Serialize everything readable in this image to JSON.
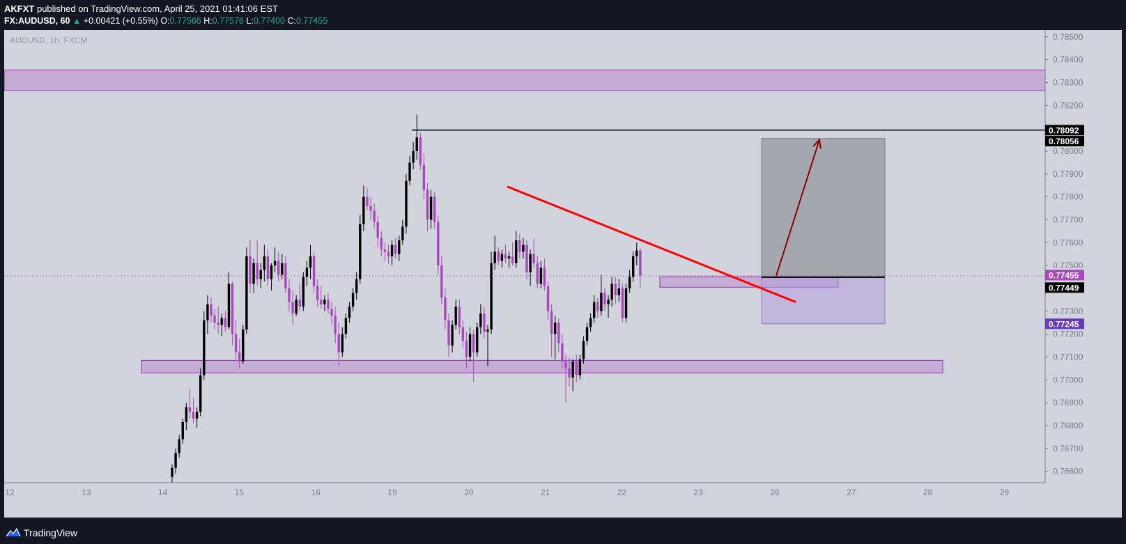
{
  "header": {
    "author": "AKFXT",
    "published_text": "published on TradingView.com, April 25, 2021 01:41:06 EST",
    "symbol": "FX:AUDUSD, 60",
    "change": "+0.00421 (+0.55%)",
    "open_label": "O:",
    "open": "0.77566",
    "high_label": "H:",
    "high": "0.77576",
    "low_label": "L:",
    "low": "0.77400",
    "close_label": "C:",
    "close": "0.77455"
  },
  "footer": {
    "brand": "TradingView"
  },
  "chart_data": {
    "type": "candlestick",
    "title": "AUDUSD, 1h, FXCM",
    "ylim": [
      0.7655,
      0.7853
    ],
    "price_ticks": [
      "0.78500",
      "0.78400",
      "0.78300",
      "0.78200",
      "0.78100",
      "0.78000",
      "0.77900",
      "0.77800",
      "0.77700",
      "0.77600",
      "0.77500",
      "0.77300",
      "0.77200",
      "0.77100",
      "0.77000",
      "0.76900",
      "0.76800",
      "0.76700",
      "0.76600"
    ],
    "time_ticks": [
      "12",
      "13",
      "14",
      "15",
      "16",
      "19",
      "20",
      "21",
      "22",
      "23",
      "26",
      "27",
      "28",
      "29"
    ],
    "price_badges": [
      {
        "value": "0.78092",
        "bg": "#000000"
      },
      {
        "value": "0.78056",
        "bg": "#000000"
      },
      {
        "value": "0.77455",
        "bg": "#ab47bc"
      },
      {
        "value": "0.77449",
        "bg": "#000000"
      },
      {
        "value": "0.77245",
        "bg": "#673ab7"
      }
    ],
    "zones": [
      {
        "name": "upper-resistance-zone",
        "y_low": 0.78265,
        "y_high": 0.78355
      },
      {
        "name": "support-zone",
        "y_low": 0.7703,
        "y_high": 0.77085
      },
      {
        "name": "breakout-zone",
        "y_low": 0.77405,
        "y_high": 0.7745
      }
    ],
    "levels": [
      {
        "name": "high-level",
        "value": 0.78092
      },
      {
        "name": "entry-level",
        "value": 0.77449
      }
    ],
    "trendline": {
      "from": 0.77845,
      "to": 0.7734,
      "color": "#ff0000"
    },
    "projection": {
      "target": 0.78056,
      "entry": 0.77449,
      "stop": 0.77245
    },
    "colors": {
      "bull": "#000000",
      "bear": "#ab47bc",
      "background": "#d1d4dc",
      "zone_fill": "#c3a6d4",
      "zone_border": "#9c27b0"
    },
    "candles": [
      {
        "o": 0.76575,
        "h": 0.7663,
        "l": 0.76545,
        "c": 0.76615
      },
      {
        "o": 0.76615,
        "h": 0.767,
        "l": 0.7659,
        "c": 0.7668
      },
      {
        "o": 0.7668,
        "h": 0.7676,
        "l": 0.7666,
        "c": 0.7674
      },
      {
        "o": 0.7674,
        "h": 0.7683,
        "l": 0.7672,
        "c": 0.76815
      },
      {
        "o": 0.76815,
        "h": 0.769,
        "l": 0.7678,
        "c": 0.7688
      },
      {
        "o": 0.7688,
        "h": 0.7696,
        "l": 0.7683,
        "c": 0.7686
      },
      {
        "o": 0.7686,
        "h": 0.7692,
        "l": 0.7681,
        "c": 0.7683
      },
      {
        "o": 0.7683,
        "h": 0.7688,
        "l": 0.7679,
        "c": 0.7686
      },
      {
        "o": 0.7686,
        "h": 0.7705,
        "l": 0.7684,
        "c": 0.7702
      },
      {
        "o": 0.7702,
        "h": 0.773,
        "l": 0.77,
        "c": 0.7726
      },
      {
        "o": 0.7726,
        "h": 0.7737,
        "l": 0.772,
        "c": 0.7733
      },
      {
        "o": 0.7733,
        "h": 0.7736,
        "l": 0.7725,
        "c": 0.7728
      },
      {
        "o": 0.7728,
        "h": 0.7731,
        "l": 0.7722,
        "c": 0.7725
      },
      {
        "o": 0.7725,
        "h": 0.7732,
        "l": 0.772,
        "c": 0.7724
      },
      {
        "o": 0.7724,
        "h": 0.7729,
        "l": 0.7719,
        "c": 0.7727
      },
      {
        "o": 0.7727,
        "h": 0.773,
        "l": 0.7721,
        "c": 0.7723
      },
      {
        "o": 0.7723,
        "h": 0.7747,
        "l": 0.7722,
        "c": 0.7742
      },
      {
        "o": 0.7742,
        "h": 0.7743,
        "l": 0.7715,
        "c": 0.772
      },
      {
        "o": 0.772,
        "h": 0.7726,
        "l": 0.7708,
        "c": 0.7712
      },
      {
        "o": 0.7712,
        "h": 0.7718,
        "l": 0.7705,
        "c": 0.7708
      },
      {
        "o": 0.7708,
        "h": 0.7724,
        "l": 0.7707,
        "c": 0.7722
      },
      {
        "o": 0.7722,
        "h": 0.7758,
        "l": 0.772,
        "c": 0.7754
      },
      {
        "o": 0.7754,
        "h": 0.7761,
        "l": 0.7738,
        "c": 0.7742
      },
      {
        "o": 0.7742,
        "h": 0.7753,
        "l": 0.7738,
        "c": 0.7751
      },
      {
        "o": 0.7751,
        "h": 0.7761,
        "l": 0.7741,
        "c": 0.7744
      },
      {
        "o": 0.7744,
        "h": 0.7751,
        "l": 0.774,
        "c": 0.7748
      },
      {
        "o": 0.7748,
        "h": 0.7759,
        "l": 0.7743,
        "c": 0.7754
      },
      {
        "o": 0.7754,
        "h": 0.7757,
        "l": 0.7741,
        "c": 0.7744
      },
      {
        "o": 0.7744,
        "h": 0.7751,
        "l": 0.7739,
        "c": 0.775
      },
      {
        "o": 0.775,
        "h": 0.7758,
        "l": 0.7747,
        "c": 0.7752
      },
      {
        "o": 0.7752,
        "h": 0.7756,
        "l": 0.7743,
        "c": 0.7746
      },
      {
        "o": 0.7746,
        "h": 0.7755,
        "l": 0.7744,
        "c": 0.7751
      },
      {
        "o": 0.7751,
        "h": 0.7754,
        "l": 0.7738,
        "c": 0.774
      },
      {
        "o": 0.774,
        "h": 0.7744,
        "l": 0.773,
        "c": 0.7734
      },
      {
        "o": 0.7734,
        "h": 0.7739,
        "l": 0.7724,
        "c": 0.7729
      },
      {
        "o": 0.7729,
        "h": 0.7737,
        "l": 0.7728,
        "c": 0.7735
      },
      {
        "o": 0.7735,
        "h": 0.7742,
        "l": 0.773,
        "c": 0.7732
      },
      {
        "o": 0.7732,
        "h": 0.7747,
        "l": 0.773,
        "c": 0.7745
      },
      {
        "o": 0.7745,
        "h": 0.7752,
        "l": 0.7741,
        "c": 0.7749
      },
      {
        "o": 0.7749,
        "h": 0.7759,
        "l": 0.7744,
        "c": 0.7754
      },
      {
        "o": 0.7754,
        "h": 0.7756,
        "l": 0.7738,
        "c": 0.7741
      },
      {
        "o": 0.7741,
        "h": 0.7744,
        "l": 0.7732,
        "c": 0.7735
      },
      {
        "o": 0.7735,
        "h": 0.7741,
        "l": 0.7731,
        "c": 0.7733
      },
      {
        "o": 0.7733,
        "h": 0.7737,
        "l": 0.773,
        "c": 0.7735
      },
      {
        "o": 0.7735,
        "h": 0.7738,
        "l": 0.7729,
        "c": 0.7731
      },
      {
        "o": 0.7731,
        "h": 0.7734,
        "l": 0.7724,
        "c": 0.7728
      },
      {
        "o": 0.7728,
        "h": 0.7732,
        "l": 0.7716,
        "c": 0.772
      },
      {
        "o": 0.772,
        "h": 0.7725,
        "l": 0.7706,
        "c": 0.7712
      },
      {
        "o": 0.7712,
        "h": 0.7723,
        "l": 0.771,
        "c": 0.772
      },
      {
        "o": 0.772,
        "h": 0.7729,
        "l": 0.7718,
        "c": 0.7727
      },
      {
        "o": 0.7727,
        "h": 0.7734,
        "l": 0.7725,
        "c": 0.7732
      },
      {
        "o": 0.7732,
        "h": 0.774,
        "l": 0.773,
        "c": 0.7738
      },
      {
        "o": 0.7738,
        "h": 0.7747,
        "l": 0.7735,
        "c": 0.7744
      },
      {
        "o": 0.7744,
        "h": 0.7772,
        "l": 0.7742,
        "c": 0.7768
      },
      {
        "o": 0.7768,
        "h": 0.7785,
        "l": 0.7765,
        "c": 0.778
      },
      {
        "o": 0.778,
        "h": 0.7784,
        "l": 0.7774,
        "c": 0.7776
      },
      {
        "o": 0.7776,
        "h": 0.778,
        "l": 0.777,
        "c": 0.7774
      },
      {
        "o": 0.7774,
        "h": 0.7777,
        "l": 0.7766,
        "c": 0.7769
      },
      {
        "o": 0.7769,
        "h": 0.7772,
        "l": 0.7758,
        "c": 0.7762
      },
      {
        "o": 0.7762,
        "h": 0.7765,
        "l": 0.7754,
        "c": 0.7757
      },
      {
        "o": 0.7757,
        "h": 0.776,
        "l": 0.7752,
        "c": 0.7756
      },
      {
        "o": 0.7756,
        "h": 0.7759,
        "l": 0.7751,
        "c": 0.7754
      },
      {
        "o": 0.7754,
        "h": 0.7761,
        "l": 0.775,
        "c": 0.7759
      },
      {
        "o": 0.7759,
        "h": 0.7762,
        "l": 0.7753,
        "c": 0.7755
      },
      {
        "o": 0.7755,
        "h": 0.7763,
        "l": 0.7752,
        "c": 0.7761
      },
      {
        "o": 0.7761,
        "h": 0.777,
        "l": 0.7759,
        "c": 0.7767
      },
      {
        "o": 0.7767,
        "h": 0.779,
        "l": 0.7764,
        "c": 0.7787
      },
      {
        "o": 0.7787,
        "h": 0.7798,
        "l": 0.7785,
        "c": 0.7795
      },
      {
        "o": 0.7795,
        "h": 0.7804,
        "l": 0.7792,
        "c": 0.78
      },
      {
        "o": 0.78,
        "h": 0.7816,
        "l": 0.7796,
        "c": 0.7806
      },
      {
        "o": 0.7806,
        "h": 0.7808,
        "l": 0.7792,
        "c": 0.7794
      },
      {
        "o": 0.7794,
        "h": 0.7799,
        "l": 0.7779,
        "c": 0.7783
      },
      {
        "o": 0.7783,
        "h": 0.7786,
        "l": 0.7765,
        "c": 0.777
      },
      {
        "o": 0.777,
        "h": 0.7783,
        "l": 0.7766,
        "c": 0.778
      },
      {
        "o": 0.778,
        "h": 0.7782,
        "l": 0.7766,
        "c": 0.7769
      },
      {
        "o": 0.7769,
        "h": 0.7772,
        "l": 0.7746,
        "c": 0.775
      },
      {
        "o": 0.775,
        "h": 0.7754,
        "l": 0.7733,
        "c": 0.7736
      },
      {
        "o": 0.7736,
        "h": 0.774,
        "l": 0.7722,
        "c": 0.7726
      },
      {
        "o": 0.7726,
        "h": 0.7729,
        "l": 0.771,
        "c": 0.7715
      },
      {
        "o": 0.7715,
        "h": 0.7726,
        "l": 0.7712,
        "c": 0.7724
      },
      {
        "o": 0.7724,
        "h": 0.7735,
        "l": 0.7722,
        "c": 0.7732
      },
      {
        "o": 0.7732,
        "h": 0.7735,
        "l": 0.772,
        "c": 0.7723
      },
      {
        "o": 0.7723,
        "h": 0.7726,
        "l": 0.7714,
        "c": 0.7717
      },
      {
        "o": 0.7717,
        "h": 0.7721,
        "l": 0.7705,
        "c": 0.771
      },
      {
        "o": 0.771,
        "h": 0.7723,
        "l": 0.7708,
        "c": 0.772
      },
      {
        "o": 0.772,
        "h": 0.7722,
        "l": 0.7699,
        "c": 0.7712
      },
      {
        "o": 0.7712,
        "h": 0.7725,
        "l": 0.771,
        "c": 0.7723
      },
      {
        "o": 0.7723,
        "h": 0.7733,
        "l": 0.772,
        "c": 0.7729
      },
      {
        "o": 0.7729,
        "h": 0.7732,
        "l": 0.7718,
        "c": 0.7721
      },
      {
        "o": 0.7721,
        "h": 0.7724,
        "l": 0.7706,
        "c": 0.7722
      },
      {
        "o": 0.7722,
        "h": 0.7756,
        "l": 0.772,
        "c": 0.7751
      },
      {
        "o": 0.7751,
        "h": 0.7763,
        "l": 0.7748,
        "c": 0.7756
      },
      {
        "o": 0.7756,
        "h": 0.7758,
        "l": 0.775,
        "c": 0.7752
      },
      {
        "o": 0.7752,
        "h": 0.7757,
        "l": 0.7749,
        "c": 0.7755
      },
      {
        "o": 0.7755,
        "h": 0.7759,
        "l": 0.7751,
        "c": 0.7753
      },
      {
        "o": 0.7753,
        "h": 0.7756,
        "l": 0.7749,
        "c": 0.7754
      },
      {
        "o": 0.7754,
        "h": 0.776,
        "l": 0.775,
        "c": 0.7751
      },
      {
        "o": 0.7751,
        "h": 0.7765,
        "l": 0.7749,
        "c": 0.7761
      },
      {
        "o": 0.7761,
        "h": 0.7764,
        "l": 0.7753,
        "c": 0.7756
      },
      {
        "o": 0.7756,
        "h": 0.7762,
        "l": 0.7753,
        "c": 0.7759
      },
      {
        "o": 0.7759,
        "h": 0.7761,
        "l": 0.7744,
        "c": 0.7747
      },
      {
        "o": 0.7747,
        "h": 0.7757,
        "l": 0.7741,
        "c": 0.7755
      },
      {
        "o": 0.7755,
        "h": 0.7762,
        "l": 0.7749,
        "c": 0.7751
      },
      {
        "o": 0.7751,
        "h": 0.7754,
        "l": 0.774,
        "c": 0.7742
      },
      {
        "o": 0.7742,
        "h": 0.7752,
        "l": 0.774,
        "c": 0.7749
      },
      {
        "o": 0.7749,
        "h": 0.7753,
        "l": 0.7739,
        "c": 0.7741
      },
      {
        "o": 0.7741,
        "h": 0.7743,
        "l": 0.7726,
        "c": 0.773
      },
      {
        "o": 0.773,
        "h": 0.7733,
        "l": 0.771,
        "c": 0.772
      },
      {
        "o": 0.772,
        "h": 0.7728,
        "l": 0.7709,
        "c": 0.7725
      },
      {
        "o": 0.7725,
        "h": 0.7727,
        "l": 0.7712,
        "c": 0.7716
      },
      {
        "o": 0.7716,
        "h": 0.772,
        "l": 0.7705,
        "c": 0.7708
      },
      {
        "o": 0.7708,
        "h": 0.7711,
        "l": 0.769,
        "c": 0.7705
      },
      {
        "o": 0.7705,
        "h": 0.771,
        "l": 0.7697,
        "c": 0.7701
      },
      {
        "o": 0.7701,
        "h": 0.7709,
        "l": 0.7695,
        "c": 0.7708
      },
      {
        "o": 0.7708,
        "h": 0.7711,
        "l": 0.7699,
        "c": 0.7702
      },
      {
        "o": 0.7702,
        "h": 0.7711,
        "l": 0.77,
        "c": 0.7709
      },
      {
        "o": 0.7709,
        "h": 0.7719,
        "l": 0.7707,
        "c": 0.7717
      },
      {
        "o": 0.7717,
        "h": 0.7725,
        "l": 0.7715,
        "c": 0.7723
      },
      {
        "o": 0.7723,
        "h": 0.7729,
        "l": 0.7721,
        "c": 0.7727
      },
      {
        "o": 0.7727,
        "h": 0.7737,
        "l": 0.7725,
        "c": 0.7734
      },
      {
        "o": 0.7734,
        "h": 0.7736,
        "l": 0.7727,
        "c": 0.773
      },
      {
        "o": 0.773,
        "h": 0.7746,
        "l": 0.7728,
        "c": 0.7738
      },
      {
        "o": 0.7738,
        "h": 0.774,
        "l": 0.773,
        "c": 0.7733
      },
      {
        "o": 0.7733,
        "h": 0.7737,
        "l": 0.7727,
        "c": 0.7735
      },
      {
        "o": 0.7735,
        "h": 0.7745,
        "l": 0.7732,
        "c": 0.7742
      },
      {
        "o": 0.7742,
        "h": 0.7745,
        "l": 0.7733,
        "c": 0.7737
      },
      {
        "o": 0.7737,
        "h": 0.7744,
        "l": 0.7734,
        "c": 0.774
      },
      {
        "o": 0.774,
        "h": 0.7742,
        "l": 0.7725,
        "c": 0.7727
      },
      {
        "o": 0.7727,
        "h": 0.7742,
        "l": 0.7725,
        "c": 0.774
      },
      {
        "o": 0.774,
        "h": 0.7748,
        "l": 0.7738,
        "c": 0.7745
      },
      {
        "o": 0.7745,
        "h": 0.7756,
        "l": 0.7743,
        "c": 0.7754
      },
      {
        "o": 0.7754,
        "h": 0.776,
        "l": 0.775,
        "c": 0.77566
      },
      {
        "o": 0.77566,
        "h": 0.77576,
        "l": 0.774,
        "c": 0.77455
      }
    ]
  }
}
